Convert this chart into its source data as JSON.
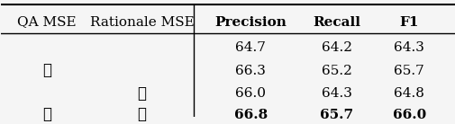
{
  "col_headers": [
    "QA MSE",
    "Rationale MSE",
    "Precision",
    "Recall",
    "F1"
  ],
  "rows": [
    {
      "qa": false,
      "rat": false,
      "precision": "64.7",
      "recall": "64.2",
      "f1": "64.3",
      "bold": false
    },
    {
      "qa": true,
      "rat": false,
      "precision": "66.3",
      "recall": "65.2",
      "f1": "65.7",
      "bold": false
    },
    {
      "qa": false,
      "rat": true,
      "precision": "66.0",
      "recall": "64.3",
      "f1": "64.8",
      "bold": false
    },
    {
      "qa": true,
      "rat": true,
      "precision": "66.8",
      "recall": "65.7",
      "f1": "66.0",
      "bold": true
    }
  ],
  "divider_col": 1,
  "bg_color": "#f5f5f5",
  "text_color": "#000000",
  "font_size": 11,
  "header_font_size": 11,
  "checkmark": "✓"
}
